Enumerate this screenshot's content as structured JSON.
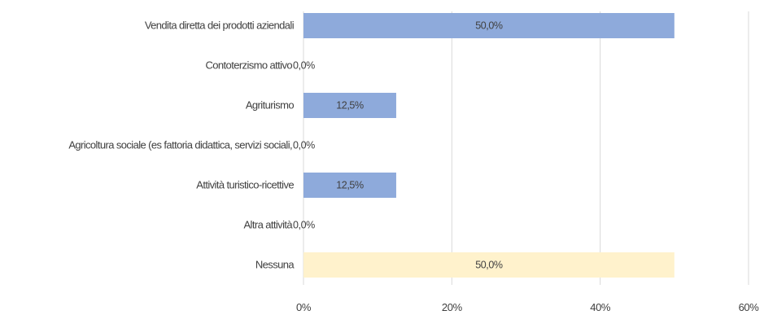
{
  "chart_data": {
    "type": "bar",
    "orientation": "horizontal",
    "categories": [
      "Vendita diretta dei prodotti aziendali",
      "Contoterzismo attivo",
      "Agriturismo",
      "Agricoltura sociale (es fattoria didattica, servizi sociali,",
      "Attività turistico-ricettive",
      "Altra attività",
      "Nessuna"
    ],
    "values": [
      50.0,
      0.0,
      12.5,
      0.0,
      12.5,
      0.0,
      50.0
    ],
    "data_labels": [
      "50,0%",
      "0,0%",
      "12,5%",
      "0,0%",
      "12,5%",
      "0,0%",
      "50,0%"
    ],
    "bar_colors": [
      "#8eaadb",
      "#8eaadb",
      "#8eaadb",
      "#8eaadb",
      "#8eaadb",
      "#8eaadb",
      "#fff2cc"
    ],
    "xlim": [
      0,
      60
    ],
    "xticks": [
      "0%",
      "20%",
      "40%",
      "60%"
    ],
    "grid": "vertical",
    "title": "",
    "xlabel": "",
    "ylabel": ""
  }
}
